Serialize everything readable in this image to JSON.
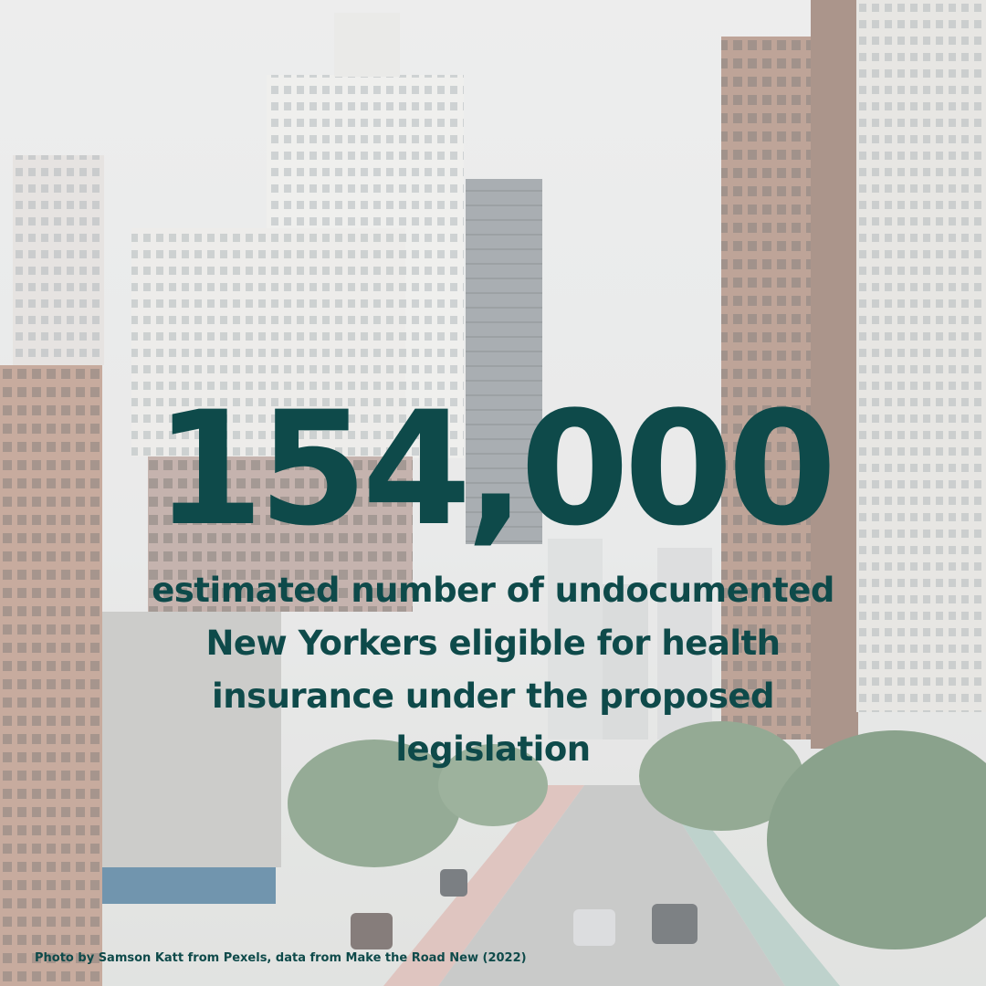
{
  "statistic": "154,000",
  "description": "estimated number of undocumented New Yorkers eligible for health insurance under the proposed legislation",
  "credit": "Photo by Samson Katt from Pexels, data from Make the Road New (2022)",
  "colors": {
    "text": "#0e4a4a",
    "sky": "#eceded"
  }
}
